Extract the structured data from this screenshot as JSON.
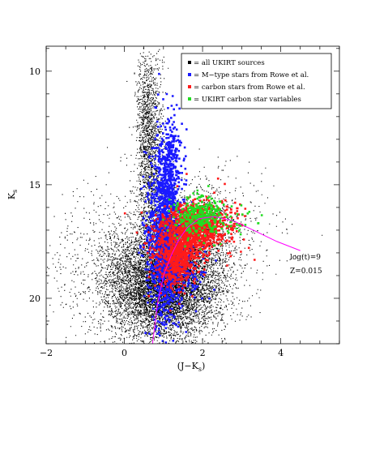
{
  "chart_data": {
    "type": "scatter",
    "title": "",
    "xlabel": "(J−K",
    "xlabel_sub": "s",
    "xlabel_close": ")",
    "ylabel": "K",
    "ylabel_sub": "s",
    "xlim": [
      -2,
      5.5
    ],
    "ylim": [
      22,
      8.9
    ],
    "y_inverted": true,
    "x_ticks": [
      -2,
      0,
      2,
      4
    ],
    "y_ticks": [
      10,
      15,
      20
    ],
    "grid": false,
    "legend_position": "top-right",
    "series": [
      {
        "name": "= all UKIRT sources",
        "color": "#000000",
        "marker": "dot",
        "clouds": [
          {
            "cx": 1.05,
            "cy": 19.5,
            "sx": 0.7,
            "sy": 1.15,
            "n": 6500
          },
          {
            "cx": 0.65,
            "cy": 14.0,
            "sx": 0.17,
            "sy": 2.3,
            "n": 1600
          },
          {
            "cx": 1.75,
            "cy": 17.6,
            "sx": 0.6,
            "sy": 1.2,
            "n": 1400
          },
          {
            "cx": 0.15,
            "cy": 18.8,
            "sx": 0.9,
            "sy": 1.7,
            "n": 1300
          },
          {
            "cx": 0.55,
            "cy": 11.2,
            "sx": 0.12,
            "sy": 1.0,
            "n": 250
          },
          {
            "cx": 2.6,
            "cy": 16.8,
            "sx": 0.8,
            "sy": 1.3,
            "n": 220
          }
        ]
      },
      {
        "name": "= M−type stars from Rowe et al.",
        "color": "#1a1aff",
        "marker": "square",
        "clouds": [
          {
            "cx": 1.05,
            "cy": 17.2,
            "sx": 0.22,
            "sy": 1.9,
            "n": 1500
          },
          {
            "cx": 1.2,
            "cy": 13.8,
            "sx": 0.11,
            "sy": 0.9,
            "n": 180
          },
          {
            "cx": 1.3,
            "cy": 18.6,
            "sx": 0.35,
            "sy": 0.8,
            "n": 350
          }
        ]
      },
      {
        "name": "= carbon stars from Rowe et al.",
        "color": "#ff1a1a",
        "marker": "square",
        "clouds": [
          {
            "cx": 1.75,
            "cy": 16.9,
            "sx": 0.42,
            "sy": 0.55,
            "n": 950
          },
          {
            "cx": 1.35,
            "cy": 18.2,
            "sx": 0.28,
            "sy": 0.65,
            "n": 650
          },
          {
            "cx": 2.3,
            "cy": 16.6,
            "sx": 0.45,
            "sy": 0.6,
            "n": 120
          }
        ]
      },
      {
        "name": "= UKIRT carbon star variables",
        "color": "#22dd22",
        "marker": "square",
        "clouds": [
          {
            "cx": 1.95,
            "cy": 16.4,
            "sx": 0.32,
            "sy": 0.45,
            "n": 320
          },
          {
            "cx": 2.8,
            "cy": 16.5,
            "sx": 0.4,
            "sy": 0.35,
            "n": 25
          }
        ]
      }
    ],
    "isochrone": {
      "color": "#ff00ff",
      "points": [
        [
          0.72,
          22.0
        ],
        [
          0.85,
          20.2
        ],
        [
          1.0,
          19.0
        ],
        [
          1.2,
          18.1
        ],
        [
          1.4,
          17.4
        ],
        [
          1.6,
          16.9
        ],
        [
          1.9,
          16.5
        ],
        [
          2.3,
          16.4
        ],
        [
          2.8,
          16.6
        ],
        [
          3.3,
          17.0
        ],
        [
          3.9,
          17.5
        ],
        [
          4.5,
          17.9
        ]
      ]
    },
    "annotations": [
      "log(t)=9",
      "Z=0.015"
    ]
  }
}
